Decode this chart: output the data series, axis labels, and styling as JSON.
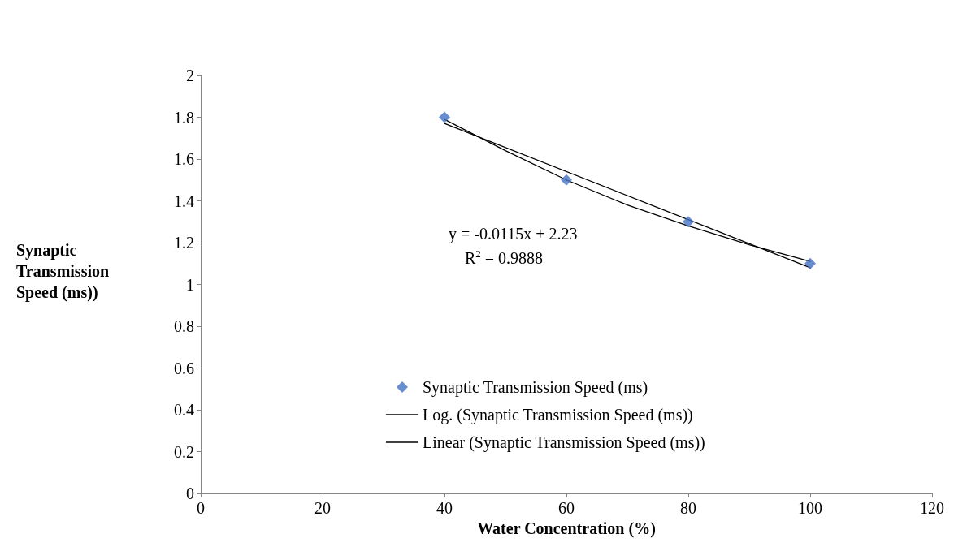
{
  "chart_data": {
    "type": "scatter",
    "xlabel": "Water Concentration (%)",
    "ylabel": "Synaptic Transmission Speed (ms))",
    "series": [
      {
        "name": "Synaptic Transmission Speed (ms)",
        "color": "#4472c4",
        "marker": "diamond",
        "x": [
          40,
          60,
          80,
          100
        ],
        "values": [
          1.8,
          1.5,
          1.3,
          1.1
        ]
      },
      {
        "name": "Log. (Synaptic Transmission Speed (ms))",
        "type": "line",
        "color": "#000000",
        "marker": "none",
        "x": [
          40,
          50,
          60,
          70,
          80,
          90,
          100
        ],
        "values": [
          1.79,
          1.64,
          1.5,
          1.38,
          1.28,
          1.19,
          1.11
        ]
      },
      {
        "name": "Linear (Synaptic Transmission Speed (ms))",
        "type": "line",
        "color": "#000000",
        "marker": "none",
        "x": [
          40,
          100
        ],
        "values": [
          1.77,
          1.08
        ]
      }
    ],
    "annotations": [
      "y = -0.0115x + 2.23",
      "R$^{2}$ = 0.9888"
    ],
    "xlim": [
      0,
      120
    ],
    "xticks": [
      0,
      20,
      40,
      60,
      80,
      100,
      120
    ],
    "ylim": [
      0,
      2
    ],
    "yticks": [
      0,
      0.2,
      0.4,
      0.6,
      0.8,
      1,
      1.2,
      1.4,
      1.6,
      1.8,
      2
    ],
    "grid": false,
    "legend": "bottom",
    "line_style": "solid"
  }
}
